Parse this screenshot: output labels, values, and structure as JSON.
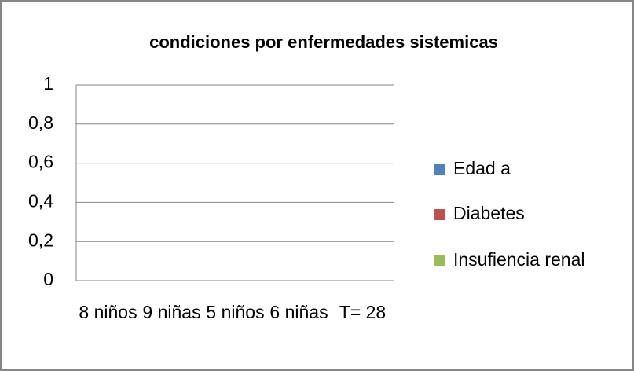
{
  "chart_data": {
    "type": "bar",
    "title": "condiciones por enfermedades sistemicas",
    "categories": [
      "8 niños",
      "9 niñas",
      "5 niños",
      "6 niñas",
      "T= 28"
    ],
    "series": [
      {
        "name": "Edad a",
        "color": "#4f81bd",
        "values": [
          0,
          0,
          0,
          0,
          0
        ]
      },
      {
        "name": "Diabetes",
        "color": "#c0504d",
        "values": [
          0,
          0,
          0,
          0,
          0
        ]
      },
      {
        "name": "Insufiencia renal",
        "color": "#9bbb59",
        "values": [
          0,
          0,
          0,
          0,
          0
        ]
      }
    ],
    "ylim": [
      0,
      1
    ],
    "yticks": [
      0,
      {
        "value": 0.2,
        "label": "0,2"
      },
      {
        "value": 0.4,
        "label": "0,4"
      },
      {
        "value": 0.6,
        "label": "0,6"
      },
      {
        "value": 0.8,
        "label": "0,8"
      },
      1
    ],
    "grid": true,
    "legend": "right"
  }
}
